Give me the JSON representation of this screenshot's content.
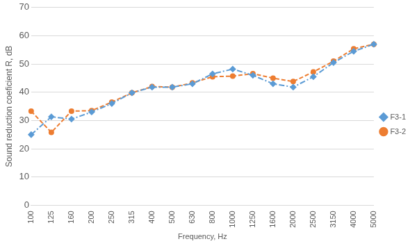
{
  "chart_data": {
    "type": "line",
    "x_label": "Frequency, Hz",
    "y_label": "Sound reduction coeficient R, dB",
    "categories": [
      "100",
      "125",
      "160",
      "200",
      "250",
      "315",
      "400",
      "500",
      "630",
      "800",
      "1000",
      "1250",
      "1600",
      "2000",
      "2500",
      "3150",
      "4000",
      "5000"
    ],
    "series": [
      {
        "name": "F3-1",
        "color": "#5b9bd5",
        "marker": "diamond",
        "line_style": "dashdot",
        "values": [
          25,
          31.3,
          30.5,
          33,
          36,
          39.8,
          41.8,
          41.8,
          43,
          46.5,
          48.2,
          46,
          43,
          41.8,
          45.5,
          50.5,
          54.5,
          57
        ]
      },
      {
        "name": "F3-2",
        "color": "#ed7d31",
        "marker": "circle",
        "line_style": "dashed",
        "values": [
          33.3,
          25.8,
          33.3,
          33.5,
          36.5,
          39.8,
          42,
          41.8,
          43.3,
          45.5,
          45.7,
          46.6,
          45,
          43.8,
          47.2,
          51,
          55.4,
          57
        ]
      }
    ],
    "ylim": [
      0,
      70
    ],
    "yticks": [
      0,
      10,
      20,
      30,
      40,
      50,
      60,
      70
    ],
    "grid": true,
    "legend": "right"
  }
}
